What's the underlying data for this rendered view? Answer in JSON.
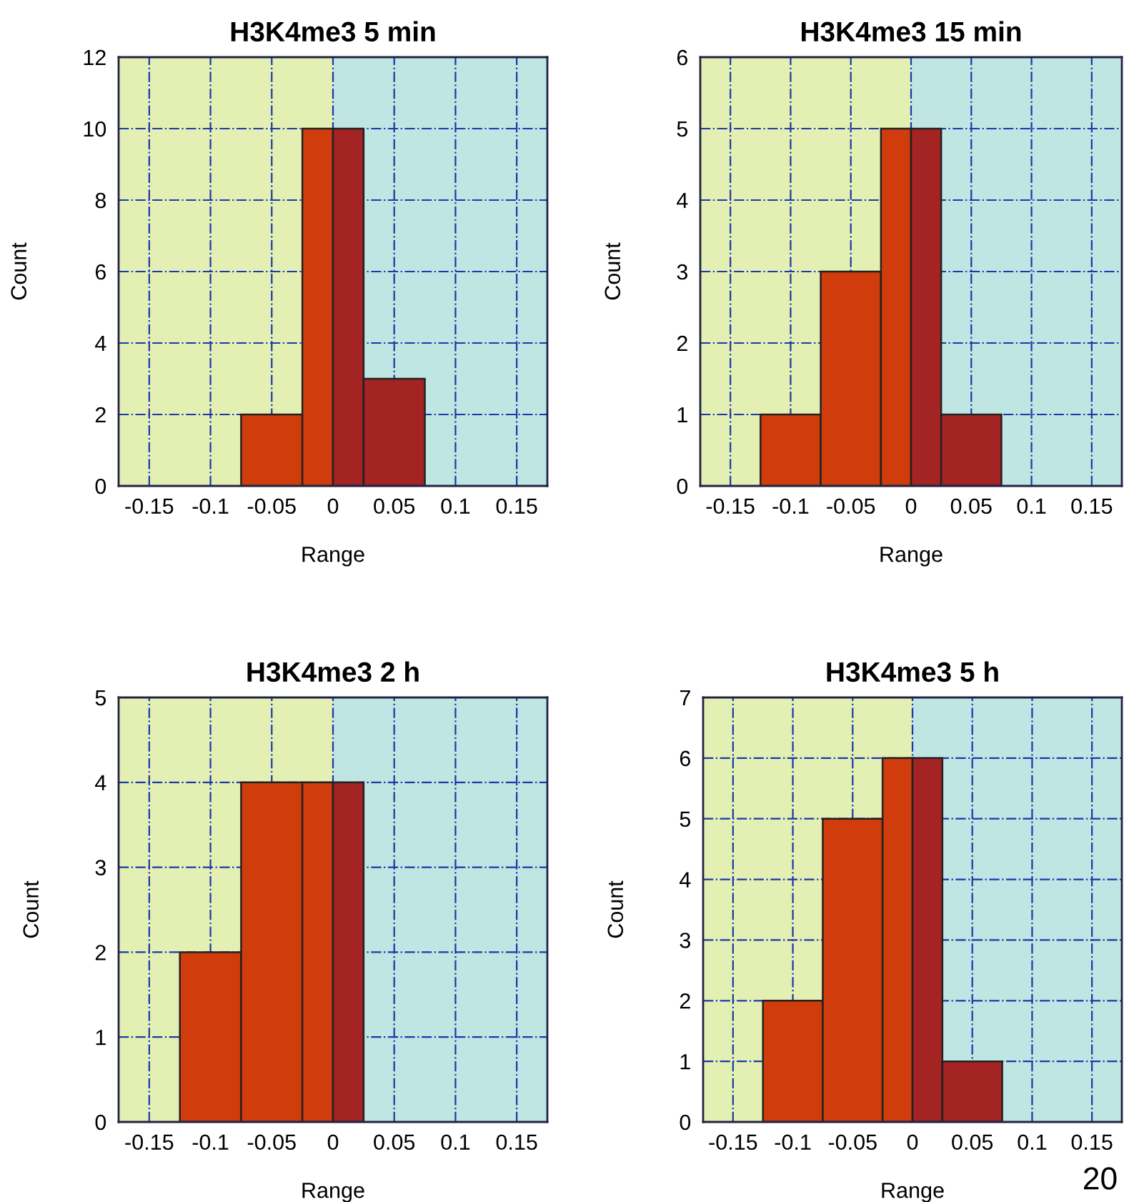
{
  "chart_data": [
    {
      "type": "histogram",
      "title": "H3K4me3 5 min",
      "xlabel": "Range",
      "ylabel": "Count",
      "bins": [
        -0.075,
        -0.025,
        0,
        0.025,
        0.075
      ],
      "values": [
        2,
        10,
        10,
        3
      ],
      "colors": [
        "#d03c0c",
        "#d03c0c",
        "#a42424",
        "#a42424"
      ],
      "xlim": [
        -0.175,
        0.175
      ],
      "ylim": [
        0,
        12
      ],
      "xticks": [
        -0.15,
        -0.1,
        -0.05,
        0,
        0.05,
        0.1,
        0.15
      ],
      "yticks": [
        0,
        2,
        4,
        6,
        8,
        10,
        12
      ],
      "grid": true,
      "line_style": "dashdot",
      "bands": [
        {
          "axis": "x",
          "from": -0.175,
          "to": 0,
          "color": "#e4efb4"
        },
        {
          "axis": "x",
          "from": 0,
          "to": 0.175,
          "color": "#bfe6e2"
        }
      ]
    },
    {
      "type": "histogram",
      "title": "H3K4me3 15 min",
      "xlabel": "Range",
      "ylabel": "Count",
      "bins": [
        -0.125,
        -0.075,
        -0.025,
        0,
        0.025,
        0.075
      ],
      "values": [
        1,
        3,
        5,
        5,
        1
      ],
      "colors": [
        "#d03c0c",
        "#d03c0c",
        "#d03c0c",
        "#a42424",
        "#a42424"
      ],
      "xlim": [
        -0.175,
        0.175
      ],
      "ylim": [
        0,
        6
      ],
      "xticks": [
        -0.15,
        -0.1,
        -0.05,
        0,
        0.05,
        0.1,
        0.15
      ],
      "yticks": [
        0,
        1,
        2,
        3,
        4,
        5,
        6
      ],
      "grid": true,
      "line_style": "dashdot",
      "bands": [
        {
          "axis": "x",
          "from": -0.175,
          "to": 0,
          "color": "#e4efb4"
        },
        {
          "axis": "x",
          "from": 0,
          "to": 0.175,
          "color": "#bfe6e2"
        }
      ]
    },
    {
      "type": "histogram",
      "title": "H3K4me3 2 h",
      "xlabel": "Range",
      "ylabel": "Count",
      "bins": [
        -0.125,
        -0.075,
        -0.025,
        0,
        0.025
      ],
      "values": [
        2,
        4,
        4,
        4
      ],
      "colors": [
        "#d03c0c",
        "#d03c0c",
        "#d03c0c",
        "#a42424"
      ],
      "xlim": [
        -0.175,
        0.175
      ],
      "ylim": [
        0,
        5
      ],
      "xticks": [
        -0.15,
        -0.1,
        -0.05,
        0,
        0.05,
        0.1,
        0.15
      ],
      "yticks": [
        0,
        1,
        2,
        3,
        4,
        5
      ],
      "grid": true,
      "line_style": "dashdot",
      "bands": [
        {
          "axis": "x",
          "from": -0.175,
          "to": 0,
          "color": "#e4efb4"
        },
        {
          "axis": "x",
          "from": 0,
          "to": 0.175,
          "color": "#bfe6e2"
        }
      ]
    },
    {
      "type": "histogram",
      "title": "H3K4me3 5 h",
      "xlabel": "Range",
      "ylabel": "Count",
      "bins": [
        -0.125,
        -0.075,
        -0.025,
        0,
        0.025,
        0.075
      ],
      "values": [
        2,
        5,
        6,
        6,
        1
      ],
      "colors": [
        "#d03c0c",
        "#d03c0c",
        "#d03c0c",
        "#a42424",
        "#a42424"
      ],
      "xlim": [
        -0.175,
        0.175
      ],
      "ylim": [
        0,
        7
      ],
      "xticks": [
        -0.15,
        -0.1,
        -0.05,
        0,
        0.05,
        0.1,
        0.15
      ],
      "yticks": [
        0,
        1,
        2,
        3,
        4,
        5,
        6,
        7
      ],
      "grid": true,
      "line_style": "dashdot",
      "bands": [
        {
          "axis": "x",
          "from": -0.175,
          "to": 0,
          "color": "#e4efb4"
        },
        {
          "axis": "x",
          "from": 0,
          "to": 0.175,
          "color": "#bfe6e2"
        }
      ],
      "annotations": [
        "20"
      ]
    }
  ]
}
